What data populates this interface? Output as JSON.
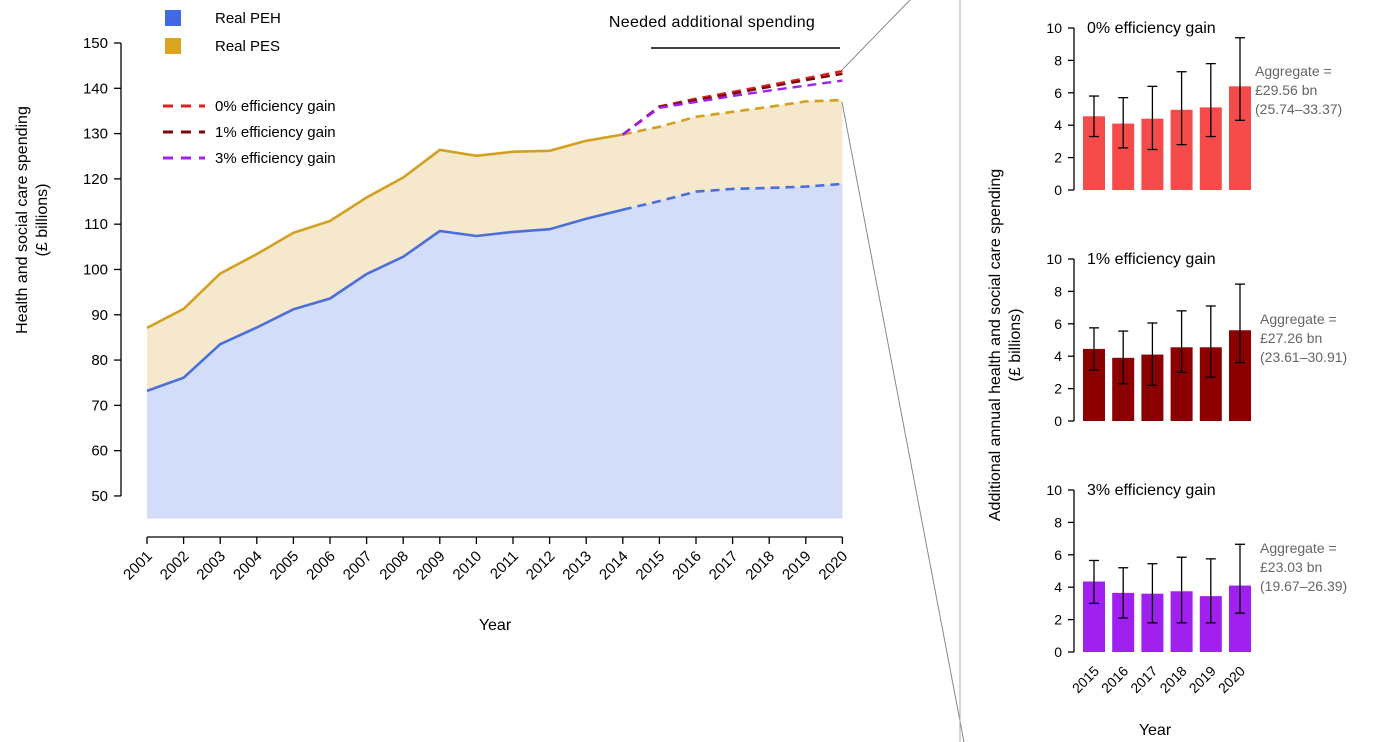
{
  "chart_data": [
    {
      "type": "area",
      "xlabel": "Year",
      "ylabel_line1": "Health and social care spending",
      "ylabel_line2": "(£ billions)",
      "ylim": [
        45,
        150
      ],
      "yticks": [
        50,
        60,
        70,
        80,
        90,
        100,
        110,
        120,
        130,
        140,
        150
      ],
      "x": [
        "2001",
        "2002",
        "2003",
        "2004",
        "2005",
        "2006",
        "2007",
        "2008",
        "2009",
        "2010",
        "2011",
        "2012",
        "2013",
        "2014",
        "2015",
        "2016",
        "2017",
        "2018",
        "2019",
        "2020"
      ],
      "legend": [
        {
          "name": "Real PEH",
          "color": "#4169e1"
        },
        {
          "name": "Real PES",
          "color": "#daa520"
        }
      ],
      "series": [
        {
          "name": "Real PEH",
          "color": "#4a6fd8",
          "fill": "#d3dcf8",
          "values": [
            73.2,
            76.1,
            83.5,
            87.2,
            91.2,
            93.6,
            99.0,
            102.8,
            108.5,
            107.4,
            108.3,
            108.9,
            111.2,
            113.2,
            115.1,
            117.2,
            117.8,
            118.0,
            118.3,
            118.9
          ],
          "projected_from_index": 13
        },
        {
          "name": "Real PES",
          "color": "#d4a020",
          "fill": "#f6e8cd",
          "values": [
            87.1,
            91.3,
            99.1,
            103.4,
            108.1,
            110.7,
            115.9,
            120.3,
            126.4,
            125.1,
            126.0,
            126.2,
            128.4,
            129.8,
            131.5,
            133.7,
            134.8,
            135.9,
            137.1,
            137.4
          ],
          "projected_from_index": 13
        }
      ],
      "scenarios": [
        {
          "name": "0% efficiency gain",
          "color": "#e02020",
          "x": [
            "2014",
            "2015",
            "2016",
            "2017",
            "2018",
            "2019",
            "2020"
          ],
          "values": [
            129.8,
            136.0,
            137.7,
            139.2,
            140.7,
            142.2,
            143.8
          ]
        },
        {
          "name": "1% efficiency gain",
          "color": "#7a0a0a",
          "x": [
            "2014",
            "2015",
            "2016",
            "2017",
            "2018",
            "2019",
            "2020"
          ],
          "values": [
            129.8,
            135.9,
            137.4,
            138.8,
            140.3,
            141.8,
            143.2
          ]
        },
        {
          "name": "3% efficiency gain",
          "color": "#a020f0",
          "x": [
            "2014",
            "2015",
            "2016",
            "2017",
            "2018",
            "2019",
            "2020"
          ],
          "values": [
            129.8,
            135.7,
            137.0,
            138.3,
            139.5,
            140.6,
            141.7
          ]
        }
      ],
      "annotation": "Needed additional spending"
    },
    {
      "type": "bar",
      "ylabel_line1": "Additional annual health and social care spending",
      "ylabel_line2": "(£ billions)",
      "xlabel": "Year",
      "categories": [
        "2015",
        "2016",
        "2017",
        "2018",
        "2019",
        "2020"
      ],
      "ylim": [
        0,
        10
      ],
      "yticks": [
        0,
        2,
        4,
        6,
        8,
        10
      ],
      "panels": [
        {
          "title": "0% efficiency gain",
          "color": "#f64b4b",
          "values": [
            4.55,
            4.1,
            4.4,
            4.95,
            5.1,
            6.4
          ],
          "err_low": [
            3.3,
            2.6,
            2.5,
            2.8,
            3.3,
            4.3
          ],
          "err_high": [
            5.8,
            5.7,
            6.4,
            7.3,
            7.8,
            9.4
          ],
          "aggregate": [
            "Aggregate =",
            "£29.56 bn",
            "(25.74–33.37)"
          ]
        },
        {
          "title": "1% efficiency gain",
          "color": "#8b0000",
          "values": [
            4.45,
            3.9,
            4.1,
            4.55,
            4.55,
            5.6
          ],
          "err_low": [
            3.15,
            2.3,
            2.2,
            3.0,
            2.7,
            3.6
          ],
          "err_high": [
            5.75,
            5.55,
            6.05,
            6.8,
            7.1,
            8.45
          ],
          "aggregate": [
            "Aggregate =",
            "£27.26 bn",
            "(23.61–30.91)"
          ]
        },
        {
          "title": "3% efficiency gain",
          "color": "#a020f0",
          "values": [
            4.35,
            3.65,
            3.6,
            3.75,
            3.45,
            4.1
          ],
          "err_low": [
            3.0,
            2.1,
            1.8,
            1.8,
            1.8,
            2.4
          ],
          "err_high": [
            5.65,
            5.2,
            5.45,
            5.85,
            5.75,
            6.65
          ],
          "aggregate": [
            "Aggregate =",
            "£23.03 bn",
            "(19.67–26.39)"
          ]
        }
      ]
    }
  ]
}
